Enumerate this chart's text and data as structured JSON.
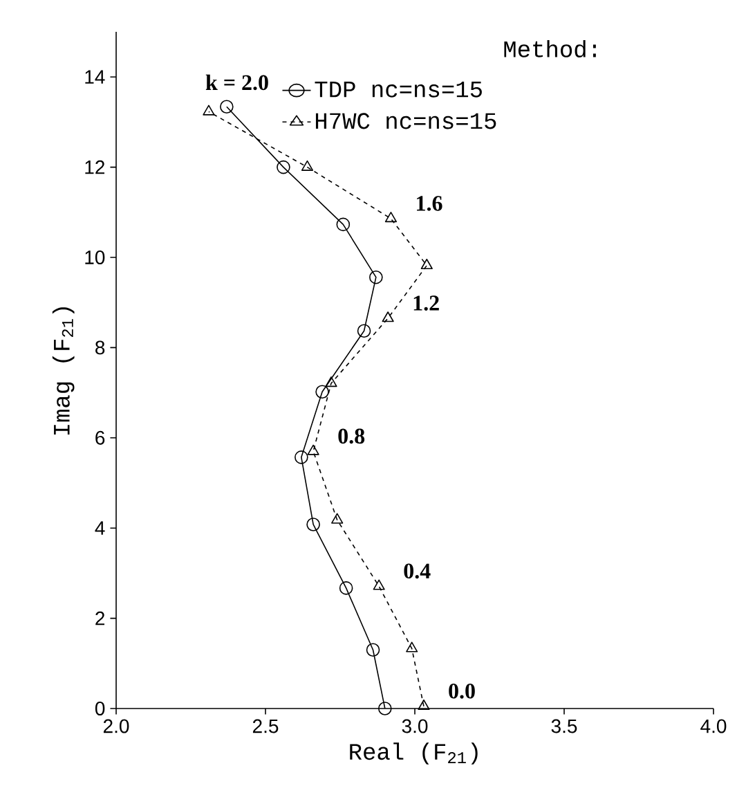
{
  "chart_data": {
    "type": "line",
    "xlabel": "Real (F$_{21}$)",
    "ylabel": "Imag (F$_{21}$)",
    "legend_title": "Method:",
    "legend": "top right",
    "xlim": [
      2.0,
      4.0
    ],
    "ylim": [
      0,
      15
    ],
    "xticks": [
      {
        "value": 2.0,
        "label": "2.0"
      },
      {
        "value": 2.5,
        "label": "2.5"
      },
      {
        "value": 3.0,
        "label": "3.0"
      },
      {
        "value": 3.5,
        "label": "3.5"
      },
      {
        "value": 4.0,
        "label": "4.0"
      }
    ],
    "yticks": [
      0,
      2,
      4,
      6,
      8,
      10,
      12,
      14
    ],
    "series": [
      {
        "name": "TDP   nc=ns=15",
        "color": "#000000",
        "marker": "circle",
        "line_style": "solid",
        "x": [
          2.9,
          2.86,
          2.77,
          2.66,
          2.62,
          2.69,
          2.83,
          2.87,
          2.76,
          2.56,
          2.37
        ],
        "values": [
          0,
          1.3,
          2.67,
          4.08,
          5.57,
          7.02,
          8.37,
          9.56,
          10.73,
          12.0,
          13.34
        ]
      },
      {
        "name": "H7WC  nc=ns=15",
        "color": "#000000",
        "marker": "triangle",
        "line_style": "dashed",
        "x": [
          3.03,
          2.99,
          2.88,
          2.74,
          2.66,
          2.72,
          2.91,
          3.04,
          2.92,
          2.64,
          2.31
        ],
        "values": [
          0.05,
          1.33,
          2.71,
          4.18,
          5.7,
          7.21,
          8.65,
          9.82,
          10.86,
          12.0,
          13.23
        ]
      }
    ],
    "annotations": [
      {
        "text": "k = 2.0",
        "x": 2.31,
        "y": 13.23
      },
      {
        "text": "1.6",
        "x": 2.92,
        "y": 10.86
      },
      {
        "text": "1.2",
        "x": 2.91,
        "y": 8.65
      },
      {
        "text": "0.8",
        "x": 2.66,
        "y": 5.7
      },
      {
        "text": "0.4",
        "x": 2.88,
        "y": 2.71
      },
      {
        "text": "0.0",
        "x": 3.03,
        "y": 0.05
      }
    ]
  }
}
